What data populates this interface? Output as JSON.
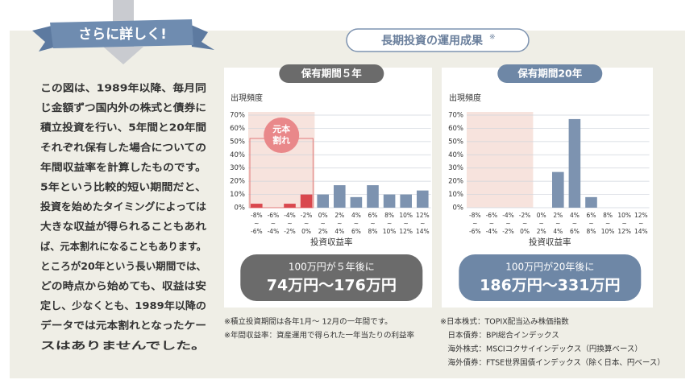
{
  "banner": "さらに詳しく!",
  "title": "長期投資の運用成果",
  "title_mark": "※",
  "body_lines": [
    "この図は、1989年以降、毎月同",
    "じ金額ずつ国内外の株式と債券に",
    "積立投資を行い、5年間と20年間",
    "それぞれ保有した場合についての",
    "年間収益率を計算したものです。",
    "5年という比較的短い期間だと、",
    "投資を始めたタイミングによっては",
    "大きな収益が得られることもあれ",
    "ば、元本割れになることもあります。",
    "ところが20年という長い期間では、",
    "どの時点から始めても、収益は安",
    "定し、少なくとも、1989年以降の",
    "データでは元本割れとなったケー",
    "スはありませんでした。"
  ],
  "chart_data": [
    {
      "type": "bar",
      "title": "保有期間５年",
      "ylabel": "出現頻度",
      "xlabel": "投資収益率",
      "categories": [
        [
          "-8%",
          "~",
          "-6%"
        ],
        [
          "-6%",
          "~",
          "-4%"
        ],
        [
          "-4%",
          "~",
          "-2%"
        ],
        [
          "-2%",
          "~",
          "0%"
        ],
        [
          "0%",
          "~",
          "2%"
        ],
        [
          "2%",
          "~",
          "4%"
        ],
        [
          "4%",
          "~",
          "6%"
        ],
        [
          "6%",
          "~",
          "8%"
        ],
        [
          "8%",
          "~",
          "10%"
        ],
        [
          "10%",
          "~",
          "12%"
        ],
        [
          "12%",
          "~",
          "14%"
        ]
      ],
      "values": [
        3,
        0,
        3,
        10,
        10,
        17,
        8,
        17,
        10,
        10,
        13
      ],
      "colors": [
        "#d9484e",
        "#d9484e",
        "#d9484e",
        "#d9484e",
        "#7d93b0",
        "#7d93b0",
        "#7d93b0",
        "#7d93b0",
        "#7d93b0",
        "#7d93b0",
        "#7d93b0"
      ],
      "ylim": [
        0,
        70
      ],
      "yticks": [
        {
          "value": 0,
          "label": "0%"
        },
        {
          "value": 10,
          "label": "10%"
        },
        {
          "value": 20,
          "label": "20%"
        },
        {
          "value": 30,
          "label": "30%"
        },
        {
          "value": 40,
          "label": "40%"
        },
        {
          "value": 50,
          "label": "50%"
        },
        {
          "value": 60,
          "label": "60%"
        },
        {
          "value": 70,
          "label": "70%"
        }
      ],
      "grid": true,
      "annotation": [
        "元本",
        "割れ"
      ],
      "result": [
        "100万円が５年後に",
        "74万円〜176万円"
      ],
      "accent": "#6b6b6b"
    },
    {
      "type": "bar",
      "title": "保有期間20年",
      "ylabel": "出現頻度",
      "xlabel": "投資収益率",
      "categories": [
        [
          "-8%",
          "~",
          "-6%"
        ],
        [
          "-6%",
          "~",
          "-4%"
        ],
        [
          "-4%",
          "~",
          "-2%"
        ],
        [
          "-2%",
          "~",
          "0%"
        ],
        [
          "0%",
          "~",
          "2%"
        ],
        [
          "2%",
          "~",
          "4%"
        ],
        [
          "4%",
          "~",
          "6%"
        ],
        [
          "6%",
          "~",
          "8%"
        ],
        [
          "8%",
          "~",
          "10%"
        ],
        [
          "10%",
          "~",
          "12%"
        ],
        [
          "12%",
          "~",
          "14%"
        ]
      ],
      "values": [
        0,
        0,
        0,
        0,
        0,
        27,
        67,
        8,
        0,
        0,
        0
      ],
      "colors": [
        "#7d93b0",
        "#7d93b0",
        "#7d93b0",
        "#7d93b0",
        "#7d93b0",
        "#7d93b0",
        "#7d93b0",
        "#7d93b0",
        "#7d93b0",
        "#7d93b0",
        "#7d93b0"
      ],
      "ylim": [
        0,
        70
      ],
      "yticks": [
        {
          "value": 0,
          "label": "0%"
        },
        {
          "value": 10,
          "label": "10%"
        },
        {
          "value": 20,
          "label": "20%"
        },
        {
          "value": 30,
          "label": "30%"
        },
        {
          "value": 40,
          "label": "40%"
        },
        {
          "value": 50,
          "label": "50%"
        },
        {
          "value": 60,
          "label": "60%"
        },
        {
          "value": 70,
          "label": "70%"
        }
      ],
      "grid": true,
      "result": [
        "100万円が20年後に",
        "186万円〜331万円"
      ],
      "accent": "#6e87a6"
    }
  ],
  "notes_left": [
    "※積立投資期間は各年1月〜 12月の一年間です。",
    "※年間収益率：資産運用で得られた一年当たりの利益率"
  ],
  "notes_right": [
    "※日本株式：TOPIX配当込み株価指数",
    "　日本債券：BPI総合インデックス",
    "　海外株式：MSCIコクサイインデックス（円換算ベース）",
    "　海外債券：FTSE世界国債インデックス（除く日本、円ベース）"
  ]
}
